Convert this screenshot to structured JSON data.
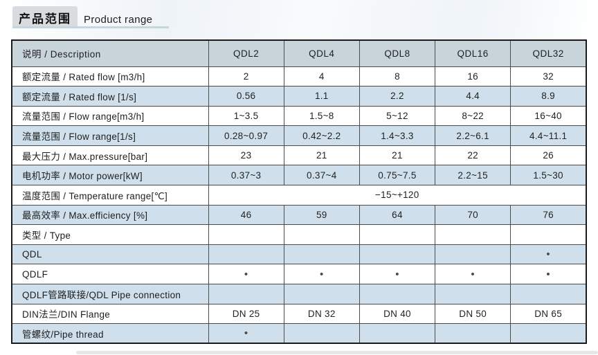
{
  "header": {
    "title_cn": "产品范围",
    "title_en": "Product range"
  },
  "colors": {
    "header_row_bg": "#c8d4da",
    "alt_row_bg": "#cfe0ec",
    "title_box_bg": "#d8dcdf",
    "title_underline": "#c7d5dc",
    "table_border": "#1a1a1a",
    "grid_line": "#4a4a4a",
    "text": "#222222",
    "bullet": "#4a4a4a",
    "bottom_bar": "#e7e7e7"
  },
  "table": {
    "columns": [
      "说明 / Description",
      "QDL2",
      "QDL4",
      "QDL8",
      "QDL16",
      "QDL32"
    ],
    "bullet_glyph": "•",
    "rows": [
      {
        "label": "额定流量 / Rated flow [m3/h]",
        "values": [
          "2",
          "4",
          "8",
          "16",
          "32"
        ]
      },
      {
        "label": "额定流量 / Rated flow [1/s]",
        "values": [
          "0.56",
          "1.1",
          "2.2",
          "4.4",
          "8.9"
        ]
      },
      {
        "label": "流量范围 / Flow range[m3/h]",
        "values": [
          "1~3.5",
          "1.5~8",
          "5~12",
          "8~22",
          "16~40"
        ]
      },
      {
        "label": "流量范围 / Flow range[1/s]",
        "values": [
          "0.28~0.97",
          "0.42~2.2",
          "1.4~3.3",
          "2.2~6.1",
          "4.4~11.1"
        ]
      },
      {
        "label": "最大压力 / Max.pressure[bar]",
        "values": [
          "23",
          "21",
          "21",
          "22",
          "26"
        ]
      },
      {
        "label": "电机功率 / Motor power[kW]",
        "values": [
          "0.37~3",
          "0.37~4",
          "0.75~7.5",
          "2.2~15",
          "1.5~30"
        ]
      },
      {
        "label": "温度范围 / Temperature range[℃]",
        "merged_value": "−15~+120"
      },
      {
        "label": "最高效率 / Max.efficiency [%]",
        "values": [
          "46",
          "59",
          "64",
          "70",
          "76"
        ]
      },
      {
        "label": "类型 / Type",
        "values": [
          "",
          "",
          "",
          "",
          ""
        ]
      },
      {
        "label": "QDL",
        "values": [
          "",
          "",
          "",
          "",
          "•"
        ]
      },
      {
        "label": "QDLF",
        "values": [
          "•",
          "•",
          "•",
          "•",
          "•"
        ]
      },
      {
        "label": "QDLF管路联接/QDL Pipe connection",
        "values": [
          "",
          "",
          "",
          "",
          ""
        ]
      },
      {
        "label": "DIN法兰/DIN Flange",
        "values": [
          "DN 25",
          "DN 32",
          "DN 40",
          "DN 50",
          "DN 65"
        ]
      },
      {
        "label": "管螺纹/Pipe thread",
        "values": [
          "•",
          "",
          "",
          "",
          ""
        ]
      }
    ]
  }
}
